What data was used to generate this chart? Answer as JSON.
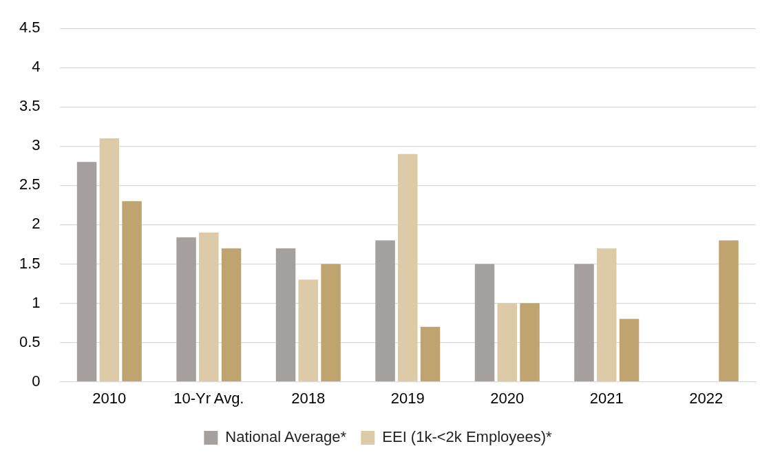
{
  "chart_data": {
    "type": "bar",
    "categories": [
      "2010",
      "10-Yr Avg.",
      "2018",
      "2019",
      "2020",
      "2021",
      "2022"
    ],
    "series": [
      {
        "name": "National Average*",
        "color": "#a5a09d",
        "values": [
          2.8,
          1.84,
          1.7,
          1.8,
          1.5,
          1.5,
          null
        ]
      },
      {
        "name": "EEI (1k-<2k Employees)*",
        "color": "#dccba6",
        "values": [
          3.1,
          1.9,
          1.3,
          2.9,
          1.0,
          1.7,
          null
        ]
      },
      {
        "color": "#c0a46f",
        "values": [
          2.3,
          1.7,
          1.5,
          0.7,
          1.0,
          0.8,
          1.8
        ]
      }
    ],
    "ylim": [
      0,
      4.5
    ],
    "yticks": [
      0,
      0.5,
      1,
      1.5,
      2,
      2.5,
      3,
      3.5,
      4,
      4.5
    ],
    "grid": "y",
    "legend": "bottom"
  }
}
